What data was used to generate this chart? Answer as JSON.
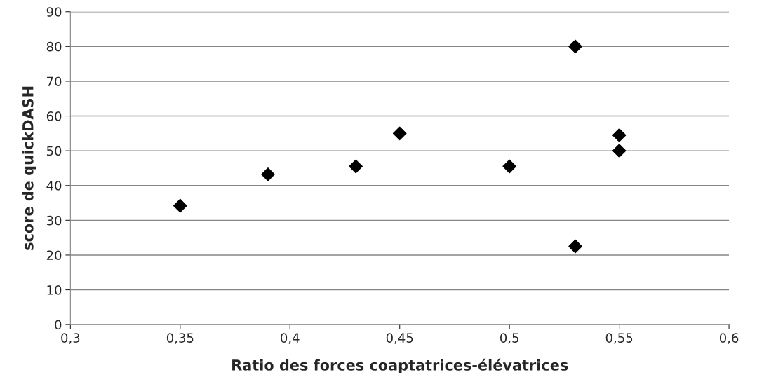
{
  "chart_data": {
    "type": "scatter",
    "xlabel": "Ratio des forces coaptatrices-élévatrices",
    "ylabel": "score de quickDASH",
    "x": [
      0.35,
      0.39,
      0.43,
      0.45,
      0.5,
      0.53,
      0.53,
      0.55,
      0.55
    ],
    "series": [
      {
        "color": "#000000",
        "values": [
          34.2,
          43.2,
          45.5,
          55,
          45.5,
          80,
          22.5,
          54.5,
          50
        ]
      }
    ],
    "marker": "diamond",
    "grid": "y",
    "xlim": [
      0.3,
      0.6
    ],
    "xticks": [
      {
        "value": 0.3,
        "label": "0,3"
      },
      {
        "value": 0.35,
        "label": "0,35"
      },
      {
        "value": 0.4,
        "label": "0,4"
      },
      {
        "value": 0.45,
        "label": "0,45"
      },
      {
        "value": 0.5,
        "label": "0,5"
      },
      {
        "value": 0.55,
        "label": "0,55"
      },
      {
        "value": 0.6,
        "label": "0,6"
      }
    ],
    "ylim": [
      0,
      90
    ],
    "yticks": [
      0,
      10,
      20,
      30,
      40,
      50,
      60,
      70,
      80,
      90
    ]
  }
}
